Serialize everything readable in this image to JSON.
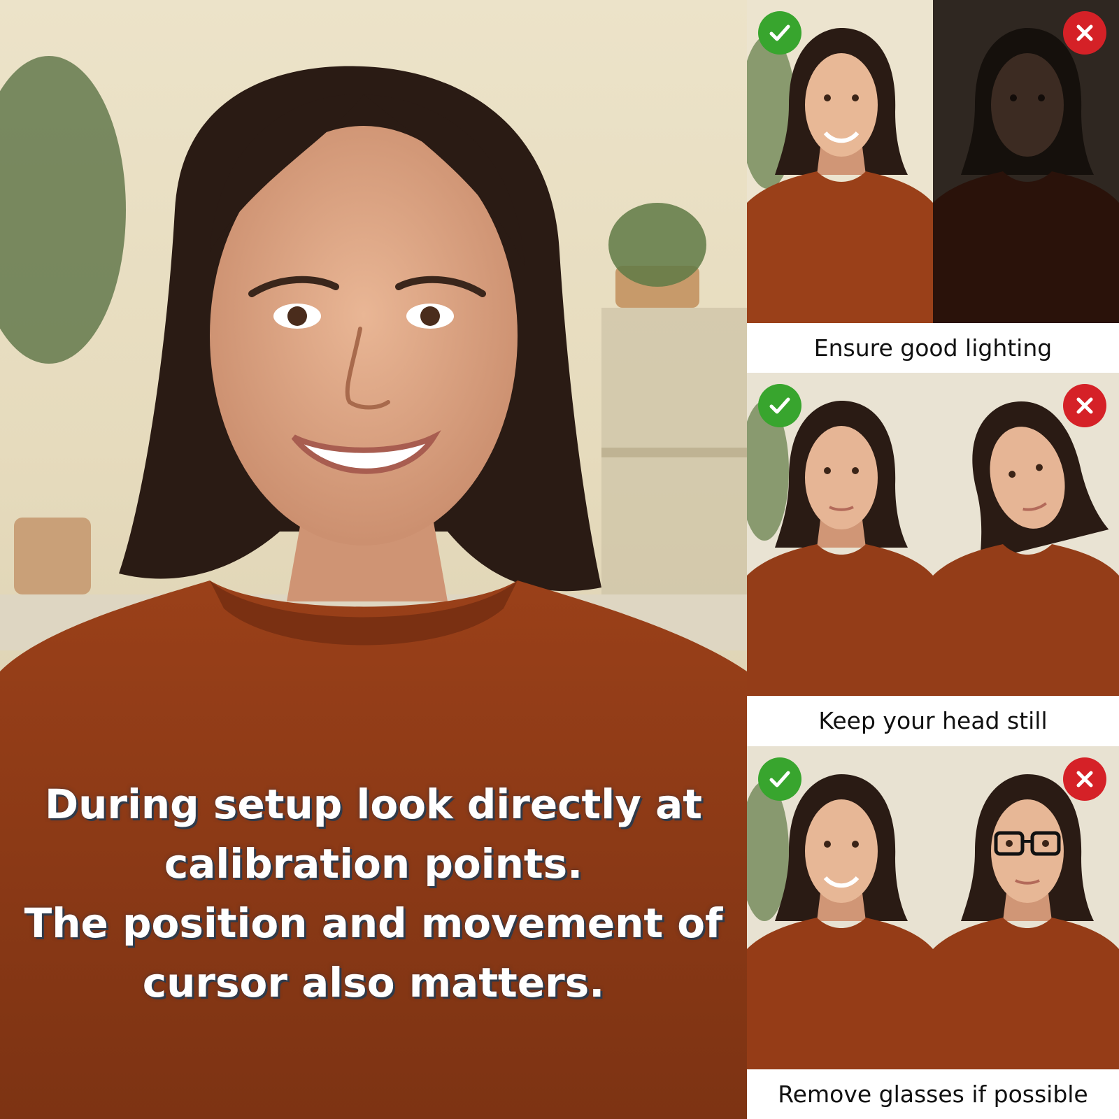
{
  "main": {
    "caption_lines": [
      "During setup look directly at",
      "calibration points.",
      "The position and movement of",
      "cursor also matters."
    ]
  },
  "tips": [
    {
      "label": "Ensure good lighting",
      "good": "well-lit-portrait",
      "bad": "dark-portrait"
    },
    {
      "label": "Keep your head still",
      "good": "straight-head-portrait",
      "bad": "tilted-head-portrait"
    },
    {
      "label": "Remove glasses if possible",
      "good": "no-glasses-portrait",
      "bad": "glasses-portrait"
    }
  ],
  "icons": {
    "good": "check-icon",
    "bad": "cross-icon"
  },
  "colors": {
    "check_green": "#38a52e",
    "cross_red": "#d52127",
    "sweater": "#8e3a17",
    "hair": "#2a1b14"
  }
}
